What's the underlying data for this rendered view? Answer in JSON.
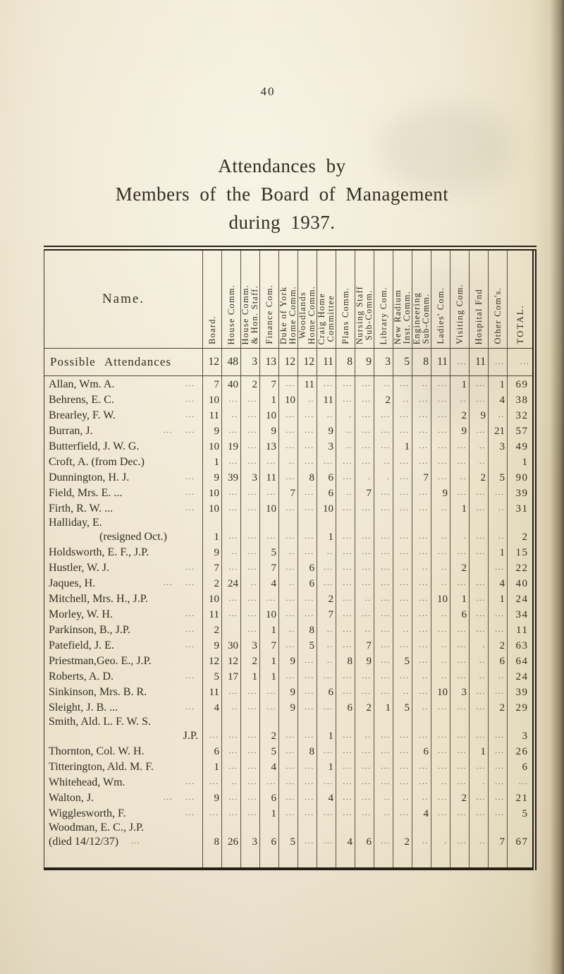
{
  "page": {
    "number": "40",
    "title_line1": "Attendances by",
    "title_line2": "Members of the Board of Management",
    "title_line3": "during 1937."
  },
  "table": {
    "name_header": "Name.",
    "col_headers": [
      "Board.",
      "House Comm.",
      "House Comm.\n& Hon. Staff.",
      "Finance Com.",
      "Duke of York\nHome Comm.",
      "Woodlands\nHome Comm.",
      "Craig Home\nCommittee",
      "Plans Comm.",
      "Nursing Staff\nSub-Comm.",
      "Library Com.",
      "New Radium\nInst. Comm.",
      "Engineering\nSub-Comm.",
      "Ladies' Com.",
      "Visiting Com.",
      "Hospital Fnd",
      "Other Com's.",
      "TOTAL."
    ],
    "possible_label": "Possible Attendances",
    "possible": [
      "12",
      "48",
      "3",
      "13",
      "12",
      "12",
      "11",
      "8",
      "9",
      "3",
      "5",
      "8",
      "11",
      "...",
      "11",
      "...",
      "..."
    ],
    "rows": [
      {
        "name": "Allan, Wm. A.",
        "leader": "...",
        "cells": [
          "7",
          "40",
          "2",
          "7",
          "...",
          "11",
          "...",
          "...",
          "...",
          "..",
          "...",
          "..",
          "...",
          "1",
          "...",
          "1"
        ],
        "total": "69"
      },
      {
        "name": "Behrens, E. C.",
        "leader": "...",
        "cells": [
          "10",
          "...",
          "...",
          "1",
          "10",
          "..",
          "11",
          "...",
          "...",
          "2",
          "..",
          "...",
          "...",
          "..",
          "...",
          "4"
        ],
        "total": "38"
      },
      {
        "name": "Brearley, F. W.",
        "leader": "...",
        "cells": [
          "11",
          "..",
          "...",
          "10",
          "...",
          "...",
          "..",
          ".",
          "...",
          "...",
          "...",
          "...",
          "...",
          "2",
          "9",
          ".."
        ],
        "total": "32"
      },
      {
        "name": "Burran, J.",
        "leader": "...    ...",
        "cells": [
          "9",
          "...",
          "...",
          "9",
          "...",
          "...",
          "9",
          "..",
          "...",
          "...",
          "...",
          "...",
          "...",
          "9",
          "...",
          "21"
        ],
        "total": "57"
      },
      {
        "name": "Butterfield, J. W. G.",
        "leader": "",
        "cells": [
          "10",
          "19",
          "...",
          "13",
          "...",
          "...",
          "3",
          "..",
          "...",
          "...",
          "1",
          "...",
          "...",
          "...",
          "..",
          "3"
        ],
        "total": "49"
      },
      {
        "name": "Croft, A. (from Dec.)",
        "leader": "",
        "cells": [
          "1",
          "...",
          "...",
          "...",
          "..",
          "...",
          "...",
          "...",
          "...",
          "..",
          "...",
          "...",
          "...",
          "...",
          "..",
          ""
        ],
        "total": "1"
      },
      {
        "name": "Dunnington, H. J.",
        "leader": "...",
        "cells": [
          "9",
          "39",
          "3",
          "11",
          "...",
          "8",
          "6",
          "...",
          ".",
          ".",
          "...",
          "7",
          "...",
          "..",
          "2",
          "5"
        ],
        "total": "90"
      },
      {
        "name": "Field, Mrs. E. ...",
        "leader": "...",
        "cells": [
          "10",
          "...",
          "...",
          "...",
          "7",
          "...",
          "6",
          "..",
          "7",
          "...",
          "...",
          "...",
          "9",
          "...",
          "...",
          "..."
        ],
        "total": "39"
      },
      {
        "name": "Firth, R. W. ...",
        "leader": "...",
        "cells": [
          "10",
          "...",
          "...",
          "10",
          "...",
          "...",
          "10",
          "...",
          "...",
          "...",
          "...",
          "...",
          "..",
          "1",
          "...",
          ".."
        ],
        "total": "31"
      },
      {
        "name": "Halliday, E.",
        "name2": "(resigned Oct.)",
        "name2_align": "indent",
        "leader": "",
        "cells": [
          "1",
          "...",
          "...",
          "...",
          "...",
          "...",
          "1",
          "...",
          "...",
          "...",
          "...",
          "...",
          "..",
          ".",
          "...",
          ".."
        ],
        "total": "2"
      },
      {
        "name": "Holdsworth, E. F., J.P.",
        "leader": "",
        "cells": [
          "9",
          "..",
          "...",
          "5",
          "..",
          "...",
          "..",
          "...",
          "...",
          "...",
          "...",
          "...",
          "...",
          "...",
          "...",
          "1"
        ],
        "total": "15"
      },
      {
        "name": "Hustler, W. J.",
        "leader": "...",
        "cells": [
          "7",
          "...",
          "...",
          "7",
          "...",
          "6",
          "...",
          "...",
          "...",
          "...",
          "..",
          "..",
          "..",
          "2",
          "",
          "..."
        ],
        "total": "22"
      },
      {
        "name": "Jaques, H.",
        "leader": "...    ...",
        "cells": [
          "2",
          "24",
          "..",
          "4",
          "..",
          "6",
          "...",
          "...",
          "...",
          "...",
          "...",
          "...",
          "..",
          "...",
          "...",
          "4"
        ],
        "total": "40"
      },
      {
        "name": "Mitchell, Mrs. H., J.P.",
        "leader": "",
        "cells": [
          "10",
          "...",
          "...",
          "...",
          "...",
          "...",
          "2",
          "...",
          "..",
          "...",
          "...",
          "...",
          "10",
          "1",
          "...",
          "1"
        ],
        "total": "24"
      },
      {
        "name": "Morley, W. H.",
        "leader": "...",
        "cells": [
          "11",
          "...",
          "...",
          "10",
          "...",
          "...",
          "7",
          "...",
          "...",
          "...",
          "...",
          "...",
          "..",
          "6",
          "...",
          "..."
        ],
        "total": "34"
      },
      {
        "name": "Parkinson, B., J.P.",
        "leader": "...",
        "cells": [
          "2",
          "",
          "...",
          "1",
          "..",
          "8",
          "..",
          "...",
          "..",
          "...",
          "..",
          "...",
          "...",
          "...",
          "...",
          "..."
        ],
        "total": "11"
      },
      {
        "name": "Patefield, J. E.",
        "leader": "...",
        "cells": [
          "9",
          "30",
          "3",
          "7",
          "...",
          "5",
          "..",
          "...",
          "7",
          "...",
          "...",
          "...",
          "..",
          "...",
          ".",
          "2"
        ],
        "total": "63"
      },
      {
        "name": "Priestman,Geo. E., J.P.",
        "leader": "",
        "cells": [
          "12",
          "12",
          "2",
          "1",
          "9",
          "...",
          "..",
          "8",
          "9",
          "...",
          "5",
          "...",
          "..",
          "...",
          "..",
          "6"
        ],
        "total": "64"
      },
      {
        "name": "Roberts, A. D.",
        "leader": "...",
        "cells": [
          "5",
          "17",
          "1",
          "1",
          "...",
          "...",
          "...",
          "...",
          "...",
          "...",
          "...",
          "..",
          "..",
          "...",
          "..",
          ".."
        ],
        "total": "24"
      },
      {
        "name": "Sinkinson, Mrs. B. R.",
        "leader": "",
        "cells": [
          "11",
          "...",
          "...",
          "...",
          "9",
          "...",
          "6",
          "...",
          "...",
          "...",
          "..",
          "...",
          "10",
          "3",
          "...",
          "..."
        ],
        "total": "39"
      },
      {
        "name": "Sleight, J. B. ...",
        "leader": "...",
        "cells": [
          "4",
          "..",
          "...",
          "...",
          "9",
          "...",
          "...",
          "6",
          "2",
          "1",
          "5",
          "..",
          "...",
          "...",
          "...",
          "2"
        ],
        "total": "29"
      },
      {
        "name": "Smith, Ald. L. F. W. S.",
        "name2": "J.P.",
        "name2_align": "right",
        "leader": "",
        "cells": [
          "...",
          "...",
          "...",
          "2",
          "...",
          "...",
          "1",
          "...",
          "..",
          "...",
          "...",
          "...",
          "...",
          "...",
          "...",
          "..."
        ],
        "total": "3"
      },
      {
        "name": "Thornton, Col. W. H.",
        "leader": "",
        "cells": [
          "6",
          "...",
          "...",
          "5",
          "...",
          "8",
          "...",
          "...",
          "...",
          "...",
          "...",
          "6",
          "...",
          "...",
          "1",
          "..."
        ],
        "total": "26"
      },
      {
        "name": "Titterington, Ald. M. F.",
        "leader": "",
        "cells": [
          "1",
          "...",
          "...",
          "4",
          "...",
          "...",
          "1",
          "...",
          "...",
          "...",
          "...",
          "...",
          "...",
          "...",
          "...",
          "..."
        ],
        "total": "6"
      },
      {
        "name": "Whitehead, Wm.",
        "leader": "...",
        "cells": [
          "...",
          "..",
          "...",
          "...",
          "...",
          "...",
          "...",
          "...",
          "...",
          "...",
          "...",
          "...",
          "..",
          "...",
          ".",
          "..."
        ],
        "total": "..."
      },
      {
        "name": "Walton, J.",
        "leader": "...    ...",
        "cells": [
          "9",
          "...",
          "...",
          "6",
          "...",
          "...",
          "4",
          "...",
          "...",
          "..",
          "..",
          "..",
          "...",
          "2",
          "...",
          "..."
        ],
        "total": "21"
      },
      {
        "name": "Wigglesworth, F.",
        "leader": "...",
        "cells": [
          "...",
          "...",
          "...",
          "1",
          "...",
          "...",
          "...",
          "...",
          "...",
          "..",
          "...",
          "4",
          "...",
          "...",
          "...",
          "..."
        ],
        "total": "5"
      },
      {
        "name": "Woodman, E. C., J.P.",
        "name2": "(died 14/12/37)",
        "name2_align": "left",
        "leader2": "...",
        "cells": [
          "8",
          "26",
          "3",
          "6",
          "5",
          "...",
          "...",
          "4",
          "6",
          "...",
          "2",
          "..",
          ".",
          "...",
          "..",
          "7"
        ],
        "total": "67"
      }
    ]
  }
}
